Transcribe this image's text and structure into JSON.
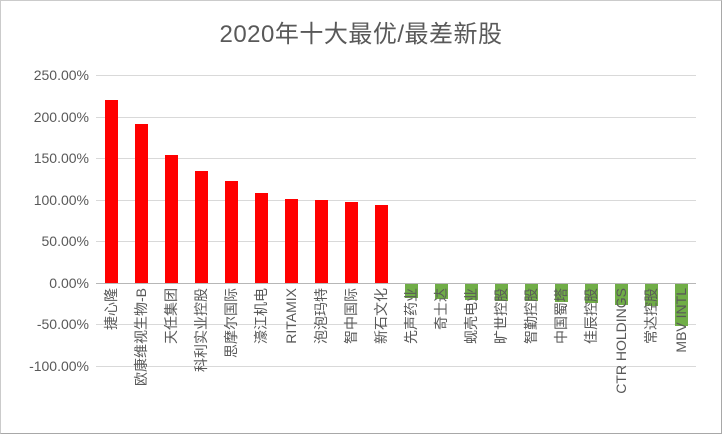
{
  "chart_data": {
    "type": "bar",
    "title": "2020年十大最优/最差新股",
    "categories": [
      "捷心隆",
      "欧康维视生物-B",
      "天任集团",
      "科利实业控股",
      "思摩尔国际",
      "濠江机电",
      "RITAMIX",
      "泡泡玛特",
      "智中国际",
      "新石文化",
      "先声药业",
      "奇士达",
      "蚬壳电业",
      "旷世控股",
      "智勤控股",
      "中国蜀塔",
      "佳辰控股",
      "CTR HOLDINGS",
      "常达控股",
      "MBV INTL"
    ],
    "values": [
      220,
      191,
      154,
      135,
      123,
      108,
      101,
      100,
      98,
      94,
      -17,
      -18,
      -19,
      -20,
      -21,
      -22,
      -23,
      -25,
      -27,
      -50
    ],
    "xlabel": "",
    "ylabel": "",
    "ylim": [
      -100,
      250
    ],
    "y_ticks": [
      {
        "value": 250,
        "label": "250.00%"
      },
      {
        "value": 200,
        "label": "200.00%"
      },
      {
        "value": 150,
        "label": "150.00%"
      },
      {
        "value": 100,
        "label": "100.00%"
      },
      {
        "value": 50,
        "label": "50.00%"
      },
      {
        "value": 0,
        "label": "0.00%"
      },
      {
        "value": -50,
        "label": "-50.00%"
      },
      {
        "value": -100,
        "label": "-100.00%"
      }
    ],
    "grid": true,
    "legend_position": "none",
    "colors": {
      "positive_bar": "#ff0000",
      "negative_bar": "#70ad47",
      "gridline": "#d9d9d9",
      "axis_line": "#b7b7b7",
      "text": "#595959"
    }
  }
}
